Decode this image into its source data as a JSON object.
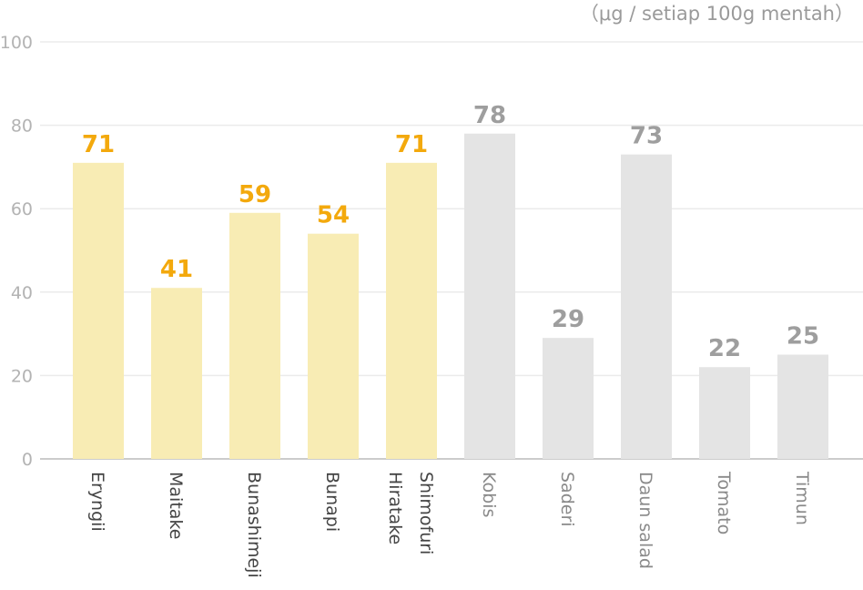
{
  "chart_data": {
    "type": "bar",
    "unit_label": "（μg / setiap 100g mentah）",
    "categories": [
      "Eryngii",
      "Maitake",
      "Bunashimeji",
      "Bunapi",
      "Shimofuri Hiratake",
      "Kobis",
      "Saderi",
      "Daun salad",
      "Tomato",
      "Timun"
    ],
    "category_lines": [
      [
        "Eryngii"
      ],
      [
        "Maitake"
      ],
      [
        "Bunashimeji"
      ],
      [
        "Bunapi"
      ],
      [
        "Shimofuri",
        "Hiratake"
      ],
      [
        "Kobis"
      ],
      [
        "Saderi"
      ],
      [
        "Daun salad"
      ],
      [
        "Tomato"
      ],
      [
        "Timun"
      ]
    ],
    "values": [
      71,
      41,
      59,
      54,
      71,
      78,
      29,
      73,
      22,
      25
    ],
    "highlight_count": 5,
    "ylim": [
      0,
      100
    ],
    "yticks": [
      0,
      20,
      40,
      60,
      80,
      100
    ],
    "grid": true,
    "colors": {
      "highlight_bar": "#f8ecb4",
      "highlight_label": "#f3a90d",
      "normal_bar": "#e4e4e4",
      "normal_label": "#9e9e9e",
      "highlight_xlabel": "#444444",
      "normal_xlabel": "#8a8a8a",
      "grid": "#ebebeb",
      "axis": "#cccccc"
    }
  }
}
